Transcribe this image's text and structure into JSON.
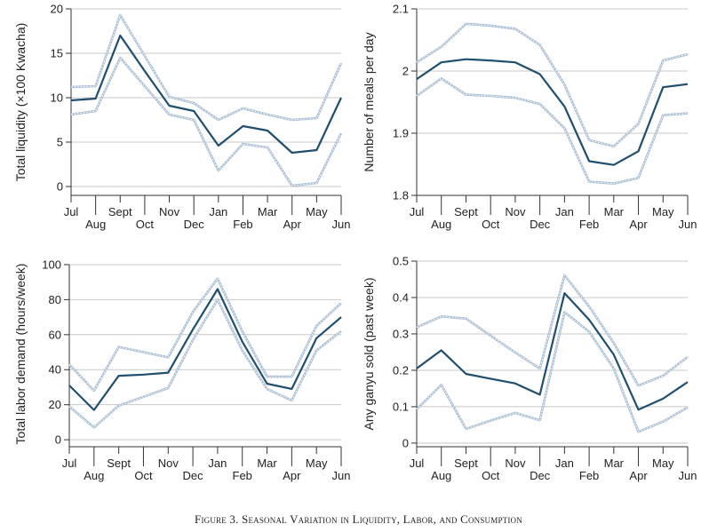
{
  "caption": "Figure 3. Seasonal Variation in Liquidity, Labor, and Consumption",
  "colors": {
    "main": "#1f4e6e",
    "ci": "#a9bed4",
    "grid": "#c8c8c8",
    "axis": "#333333",
    "text": "#222222"
  },
  "chart_data": [
    {
      "type": "line",
      "ylabel": "Total liquidity (×100 Kwacha)",
      "ylim": [
        -1,
        20
      ],
      "yticks": [
        0,
        5,
        10,
        15,
        20
      ],
      "ytick_labels": [
        "0",
        "5",
        "10",
        "15",
        "20"
      ],
      "x": [
        "Jul",
        "Aug",
        "Sept",
        "Oct",
        "Nov",
        "Dec",
        "Jan",
        "Feb",
        "Mar",
        "Apr",
        "May",
        "Jun"
      ],
      "series": [
        {
          "values": [
            9.7,
            9.9,
            17.0,
            13.0,
            9.1,
            8.5,
            4.6,
            6.8,
            6.3,
            3.8,
            4.1,
            10.0
          ]
        },
        {
          "values": [
            11.2,
            11.3,
            19.3,
            14.7,
            10.1,
            9.4,
            7.5,
            8.8,
            8.1,
            7.5,
            7.7,
            13.9
          ]
        },
        {
          "values": [
            8.1,
            8.5,
            14.5,
            11.3,
            8.1,
            7.5,
            1.8,
            4.8,
            4.4,
            0.1,
            0.4,
            6.0
          ]
        }
      ],
      "grid": true
    },
    {
      "type": "line",
      "ylabel": "Number of meals per day",
      "ylim": [
        1.8,
        2.1
      ],
      "yticks": [
        1.8,
        1.9,
        2.0,
        2.1
      ],
      "ytick_labels": [
        "1.8",
        "1.9",
        "2",
        "2.1"
      ],
      "x": [
        "Jul",
        "Aug",
        "Sept",
        "Oct",
        "Nov",
        "Dec",
        "Jan",
        "Feb",
        "Mar",
        "Apr",
        "May",
        "Jun"
      ],
      "series": [
        {
          "values": [
            1.987,
            2.014,
            2.019,
            2.017,
            2.014,
            1.995,
            1.943,
            1.855,
            1.849,
            1.871,
            1.974,
            1.979
          ]
        },
        {
          "values": [
            2.014,
            2.039,
            2.076,
            2.073,
            2.068,
            2.042,
            1.978,
            1.889,
            1.879,
            1.915,
            2.017,
            2.027
          ]
        },
        {
          "values": [
            1.96,
            1.988,
            1.962,
            1.96,
            1.957,
            1.947,
            1.908,
            1.822,
            1.819,
            1.828,
            1.929,
            1.932
          ]
        }
      ],
      "grid": true
    },
    {
      "type": "line",
      "ylabel": "Total labor demand (hours/week)",
      "ylim": [
        -4,
        102
      ],
      "yticks": [
        0,
        20,
        40,
        60,
        80,
        100
      ],
      "ytick_labels": [
        "0",
        "20",
        "40",
        "60",
        "80",
        "100"
      ],
      "x": [
        "Jul",
        "Aug",
        "Sept",
        "Oct",
        "Nov",
        "Dec",
        "Jan",
        "Feb",
        "Mar",
        "Apr",
        "May",
        "Jun"
      ],
      "series": [
        {
          "values": [
            31,
            17,
            36.5,
            37.2,
            38.3,
            63,
            86,
            56,
            32,
            29,
            58,
            70
          ]
        },
        {
          "values": [
            43,
            28,
            53,
            50,
            47,
            73,
            92,
            62,
            36,
            36,
            65,
            78
          ]
        },
        {
          "values": [
            19,
            7,
            19.5,
            24.5,
            29.5,
            57,
            80,
            51,
            29,
            22.5,
            51,
            62
          ]
        }
      ],
      "grid": true
    },
    {
      "type": "line",
      "ylabel": "Any ganyu sold (past week)",
      "ylim": [
        -0.01,
        0.5
      ],
      "yticks": [
        0,
        0.1,
        0.2,
        0.3,
        0.4,
        0.5
      ],
      "ytick_labels": [
        "0",
        "0.1",
        "0.2",
        "0.3",
        "0.4",
        "0.5"
      ],
      "x": [
        "Jul",
        "Aug",
        "Sept",
        "Oct",
        "Nov",
        "Dec",
        "Jan",
        "Feb",
        "Mar",
        "Apr",
        "May",
        "Jun"
      ],
      "series": [
        {
          "values": [
            0.205,
            0.255,
            0.19,
            0.177,
            0.164,
            0.133,
            0.412,
            0.339,
            0.243,
            0.092,
            0.122,
            0.168
          ]
        },
        {
          "values": [
            0.318,
            0.348,
            0.342,
            0.295,
            0.249,
            0.205,
            0.461,
            0.375,
            0.275,
            0.158,
            0.185,
            0.237
          ]
        },
        {
          "values": [
            0.093,
            0.16,
            0.039,
            0.062,
            0.083,
            0.063,
            0.36,
            0.306,
            0.205,
            0.031,
            0.059,
            0.098
          ]
        }
      ],
      "grid": true
    }
  ]
}
